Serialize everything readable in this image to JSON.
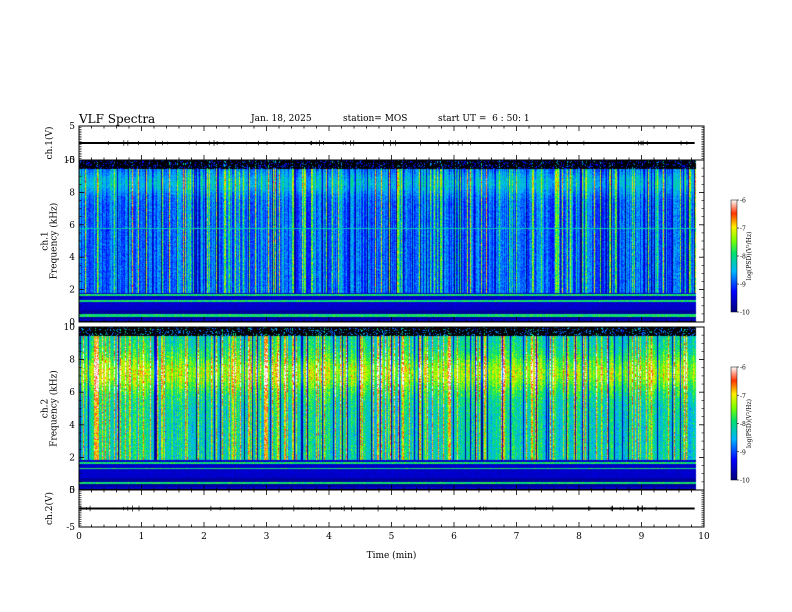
{
  "header": {
    "title": "VLF Spectra",
    "date": "Jan. 18, 2025",
    "station": "station= MOS",
    "start": "start UT =  6 : 50: 1"
  },
  "chart_data": [
    {
      "name": "ch1-waveform",
      "type": "line",
      "ylabel": "ch.1(V)",
      "ylim": [
        -5,
        5
      ],
      "yticks": [
        "5",
        "-5"
      ],
      "xlim": [
        0,
        10
      ],
      "level": 0
    },
    {
      "name": "ch1-spectrogram",
      "type": "heatmap",
      "ylabel": "ch.1\nFrequency (kHz)",
      "ylim": [
        0,
        10
      ],
      "yticks": [
        "0",
        "2",
        "4",
        "6",
        "8",
        "10"
      ],
      "xlim": [
        0,
        10
      ],
      "colorbar": {
        "label": "log(PSD)(V²/Hz)",
        "range": [
          -10,
          -6
        ],
        "ticks": [
          "-6",
          "-7",
          "-8",
          "-9",
          "-10"
        ]
      }
    },
    {
      "name": "ch2-spectrogram",
      "type": "heatmap",
      "ylabel": "ch.2\nFrequency (kHz)",
      "ylim": [
        0,
        10
      ],
      "yticks": [
        "0",
        "2",
        "4",
        "6",
        "8",
        "10"
      ],
      "xlim": [
        0,
        10
      ],
      "colorbar": {
        "label": "log(PSD)(V²/Hz)",
        "range": [
          -10,
          -6
        ],
        "ticks": [
          "-6",
          "-7",
          "-8",
          "-9",
          "-10"
        ]
      }
    },
    {
      "name": "ch2-waveform",
      "type": "line",
      "ylabel": "ch.2(V)",
      "ylim": [
        -5,
        5
      ],
      "yticks": [
        "5",
        "-5"
      ],
      "xlim": [
        0,
        10
      ],
      "level": 0
    }
  ],
  "x_axis": {
    "label": "Time (min)",
    "range": [
      0,
      10
    ],
    "ticks": [
      "0",
      "1",
      "2",
      "3",
      "4",
      "5",
      "6",
      "7",
      "8",
      "9",
      "10"
    ],
    "data_end": 9.85
  }
}
